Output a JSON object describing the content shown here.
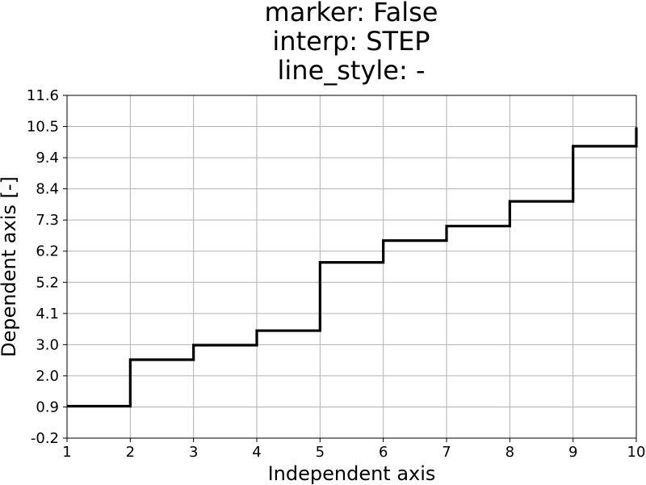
{
  "chart_data": {
    "type": "line",
    "title_lines": [
      "marker: False",
      "interp: STEP",
      "line_style: -"
    ],
    "xlabel": "Independent axis",
    "ylabel": "Dependent axis [-]",
    "xlim": [
      1,
      10
    ],
    "ylim": [
      -0.2,
      11.6
    ],
    "x_ticks": [
      "1",
      "2",
      "3",
      "4",
      "5",
      "6",
      "7",
      "8",
      "9",
      "10"
    ],
    "y_ticks": [
      "-0.2",
      "0.9",
      "2.0",
      "3.0",
      "4.1",
      "5.2",
      "6.2",
      "7.3",
      "8.4",
      "9.4",
      "10.5",
      "11.6"
    ],
    "grid": true,
    "legend": "none",
    "series": [
      {
        "interpolation": "step-post",
        "line_style": "-",
        "marker": false,
        "color": "#000000",
        "x": [
          1,
          2,
          3,
          4,
          5,
          6,
          7,
          8,
          9,
          10
        ],
        "y": [
          0.9,
          2.5,
          3.0,
          3.5,
          5.85,
          6.6,
          7.1,
          7.95,
          9.85,
          10.5
        ]
      }
    ]
  }
}
